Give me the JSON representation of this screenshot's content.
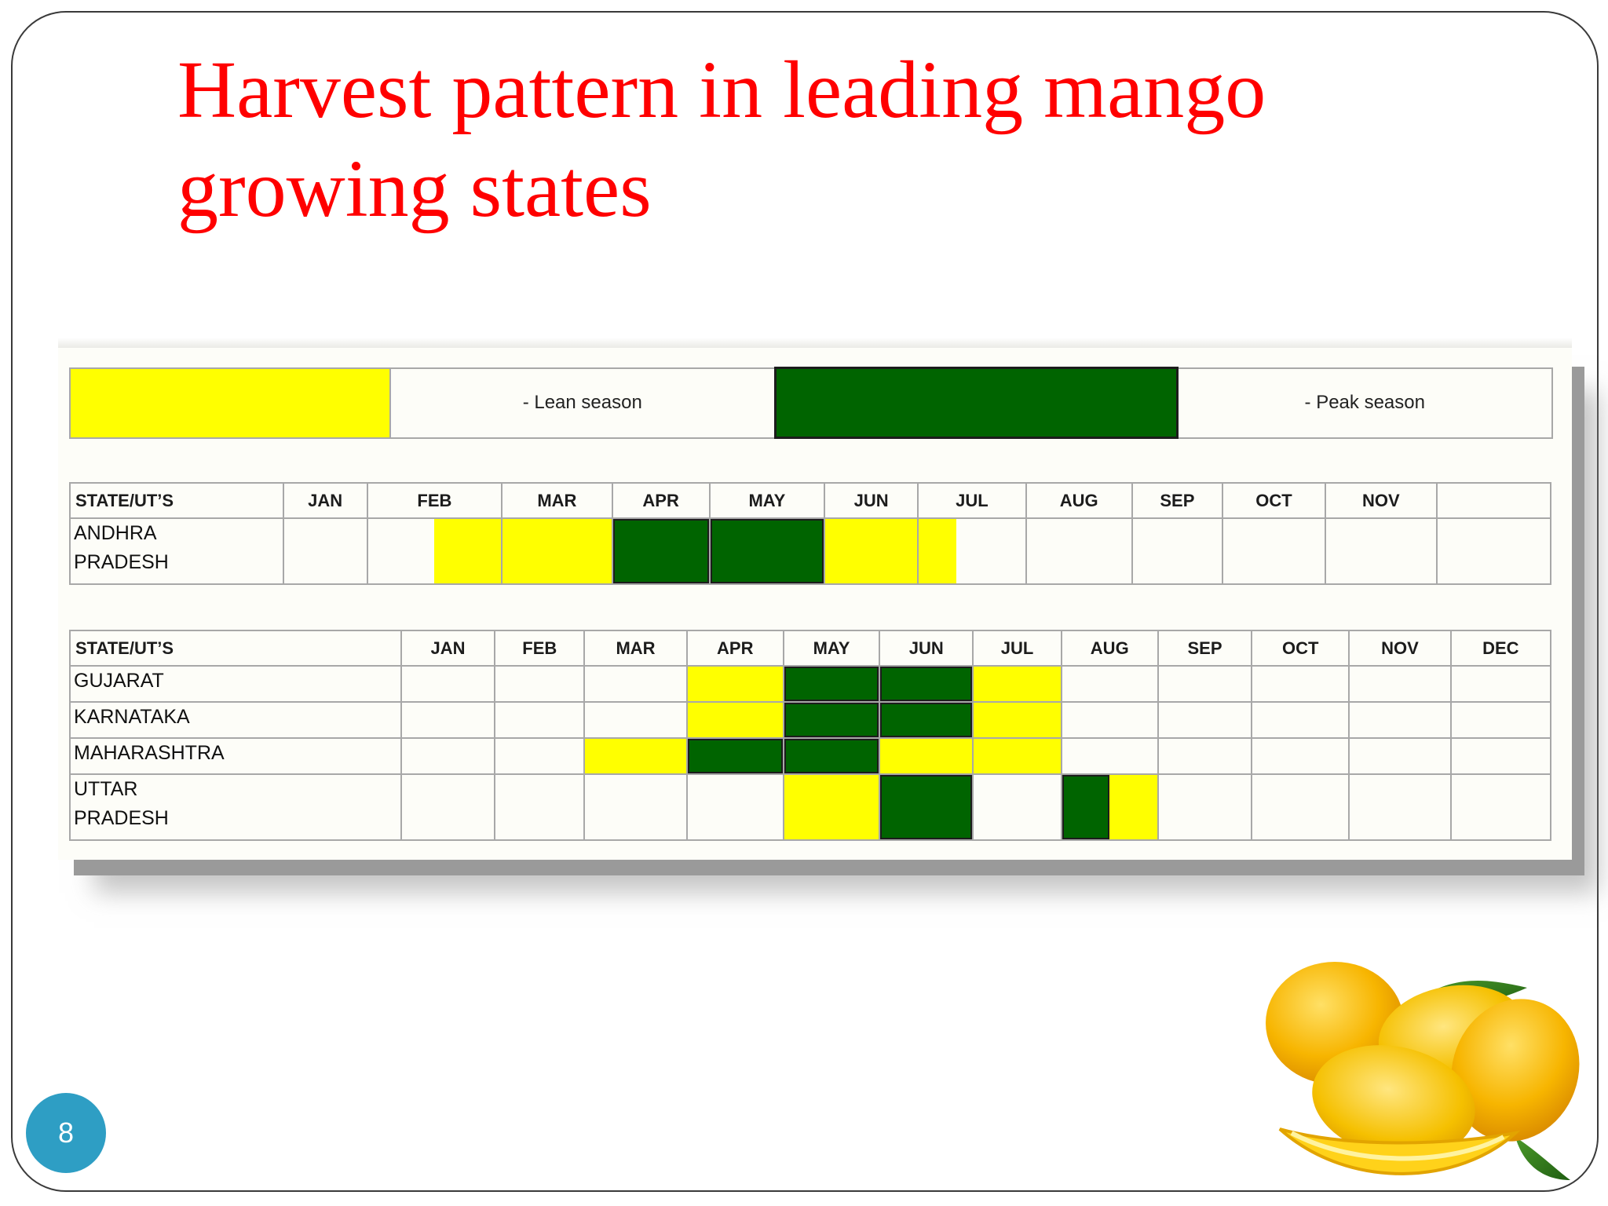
{
  "slide": {
    "title": "Harvest pattern in leading mango\ngrowing states",
    "page_number": "8"
  },
  "legend": {
    "lean_label": "- Lean season",
    "peak_label": "- Peak season",
    "lean_color": "#ffff00",
    "peak_color": "#006400"
  },
  "table1": {
    "state_header": "STATE/UT’S",
    "months": [
      "JAN",
      "FEB",
      "MAR",
      "APR",
      "MAY",
      "JUN",
      "JUL",
      "AUG",
      "SEP",
      "OCT",
      "NOV",
      ""
    ],
    "rows": [
      {
        "state": "ANDHRA\nPRADESH",
        "season": [
          "",
          "lean-late-half",
          "lean",
          "peak",
          "peak",
          "lean",
          "lean-early-third",
          "",
          "",
          "",
          "",
          ""
        ]
      }
    ]
  },
  "table2": {
    "state_header": "STATE/UT’S",
    "months": [
      "JAN",
      "FEB",
      "MAR",
      "APR",
      "MAY",
      "JUN",
      "JUL",
      "AUG",
      "SEP",
      "OCT",
      "NOV",
      "DEC"
    ],
    "rows": [
      {
        "state": "GUJARAT",
        "season": [
          "",
          "",
          "",
          "lean",
          "peak",
          "peak",
          "lean",
          "",
          "",
          "",
          "",
          ""
        ]
      },
      {
        "state": "KARNATAKA",
        "season": [
          "",
          "",
          "",
          "lean",
          "peak",
          "peak",
          "lean",
          "",
          "",
          "",
          "",
          ""
        ]
      },
      {
        "state": "MAHARASHTRA",
        "season": [
          "",
          "",
          "lean",
          "peak",
          "peak",
          "lean",
          "lean",
          "",
          "",
          "",
          "",
          ""
        ]
      },
      {
        "state": "UTTAR\nPRADESH",
        "season": [
          "",
          "",
          "",
          "",
          "lean",
          "peak",
          "",
          "peak-lean-split",
          "",
          "",
          "",
          ""
        ]
      }
    ]
  },
  "decor": {
    "mango_picture": "mango-fruits-icon"
  }
}
